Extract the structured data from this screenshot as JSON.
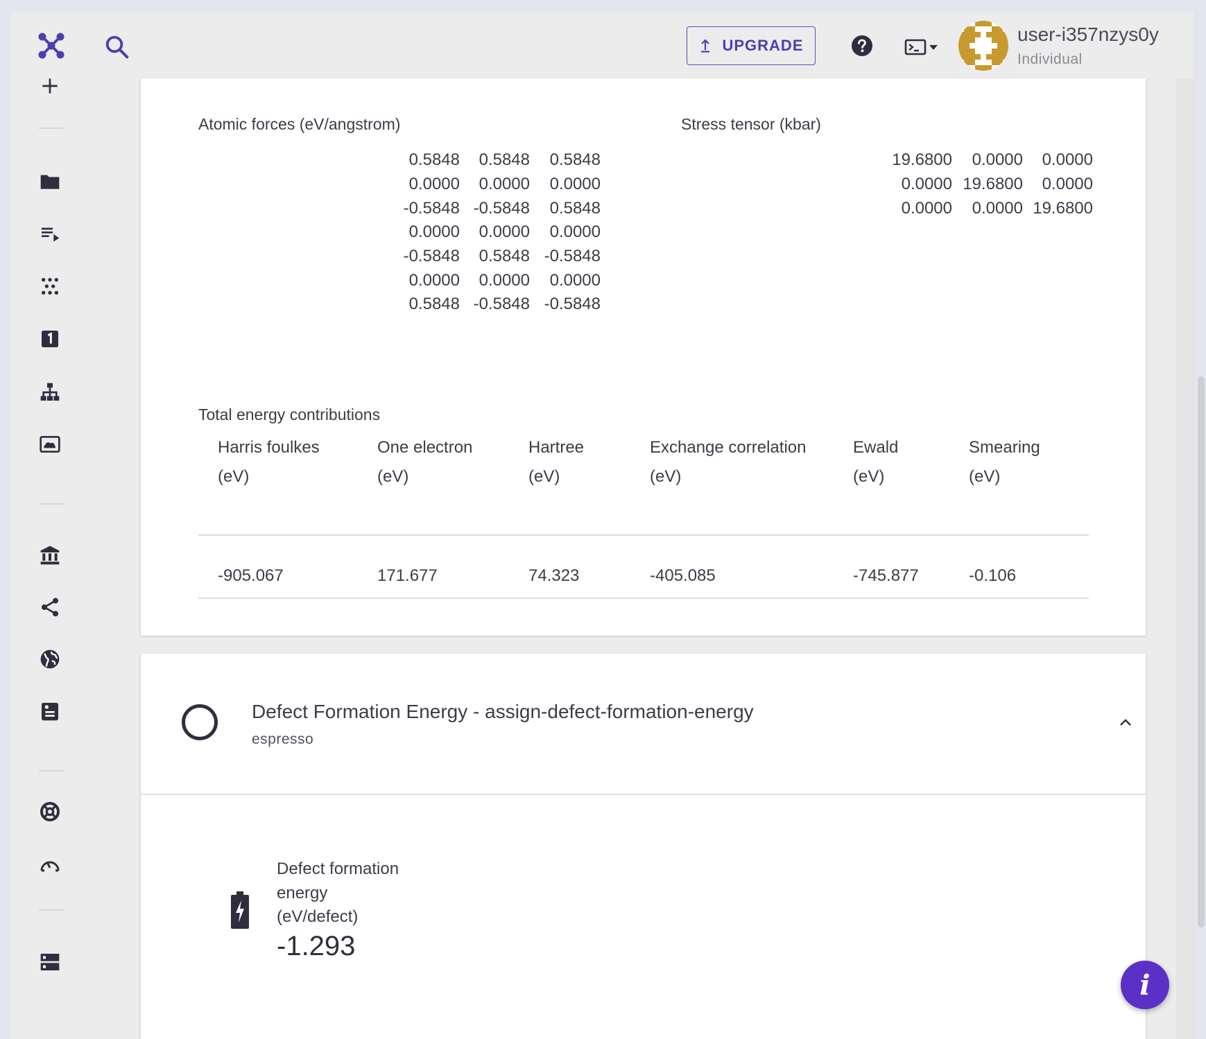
{
  "header": {
    "upgrade_label": "UPGRADE",
    "username": "user-i357nzys0y",
    "plan": "Individual",
    "brand_color": "#4b3fb0"
  },
  "sidebar": {
    "items": [
      "add-icon",
      "folder-icon",
      "playlist-icon",
      "materials-icon",
      "number-one-icon",
      "workflow-icon",
      "cloud-icon",
      "bank-icon",
      "share-icon",
      "globe-icon",
      "notebook-icon",
      "support-icon",
      "dashboard-icon",
      "server-icon"
    ]
  },
  "results": {
    "forces_title": "Atomic forces (eV/angstrom)",
    "forces": [
      [
        "0.5848",
        "0.5848",
        "0.5848"
      ],
      [
        "0.0000",
        "0.0000",
        "0.0000"
      ],
      [
        "-0.5848",
        "-0.5848",
        "0.5848"
      ],
      [
        "0.0000",
        "0.0000",
        "0.0000"
      ],
      [
        "-0.5848",
        "0.5848",
        "-0.5848"
      ],
      [
        "0.0000",
        "0.0000",
        "0.0000"
      ],
      [
        "0.5848",
        "-0.5848",
        "-0.5848"
      ]
    ],
    "stress_title": "Stress tensor (kbar)",
    "stress": [
      [
        "19.6800",
        "0.0000",
        "0.0000"
      ],
      [
        "0.0000",
        "19.6800",
        "0.0000"
      ],
      [
        "0.0000",
        "0.0000",
        "19.6800"
      ]
    ],
    "energy_title": "Total energy contributions",
    "energy_headers": [
      {
        "name": "Harris foulkes",
        "unit": "(eV)"
      },
      {
        "name": "One electron",
        "unit": "(eV)"
      },
      {
        "name": "Hartree",
        "unit": "(eV)"
      },
      {
        "name": "Exchange correlation",
        "unit": "(eV)"
      },
      {
        "name": "Ewald",
        "unit": "(eV)"
      },
      {
        "name": "Smearing",
        "unit": "(eV)"
      }
    ],
    "energy_values": [
      "-905.067",
      "171.677",
      "74.323",
      "-405.085",
      "-745.877",
      "-0.106"
    ]
  },
  "unit": {
    "title": "Defect Formation Energy - assign-defect-formation-energy",
    "subtitle": "espresso",
    "property_label_1": "Defect formation",
    "property_label_2": "energy",
    "property_label_3": "(eV/defect)",
    "property_value": "-1.293"
  }
}
